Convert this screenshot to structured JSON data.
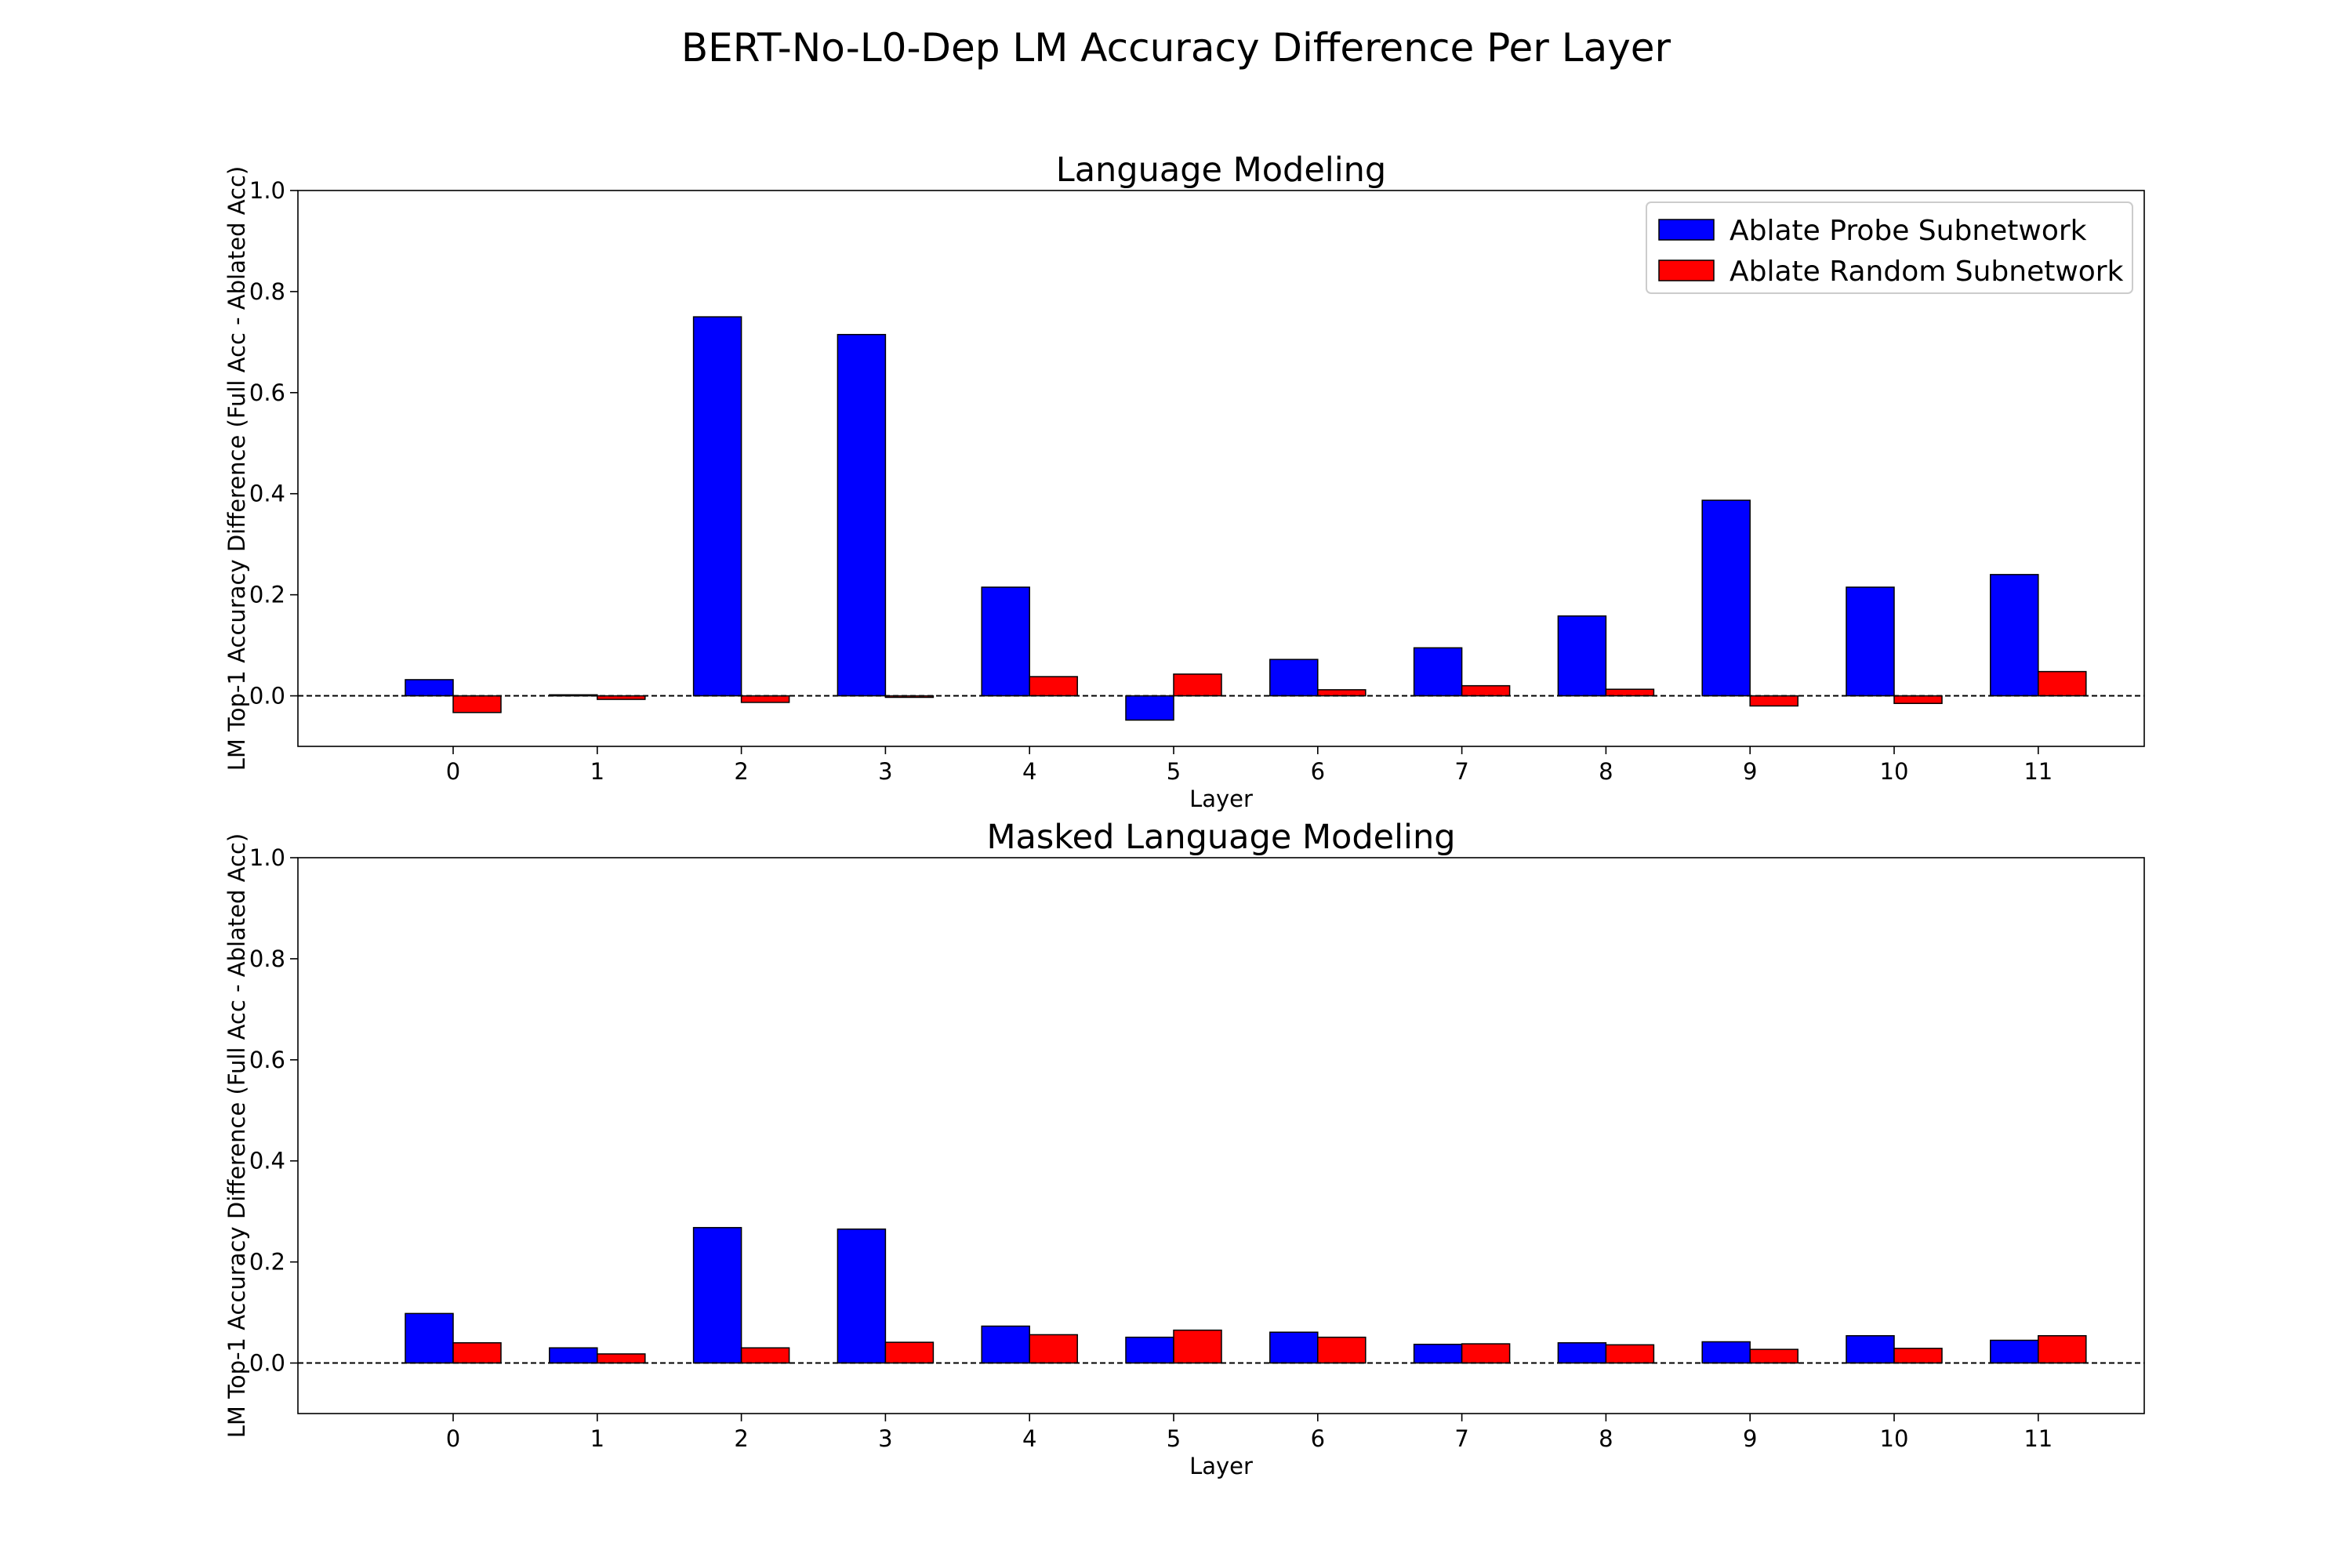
{
  "figure": {
    "title": "BERT-No-L0-Dep LM Accuracy Difference Per Layer"
  },
  "colors": {
    "probe": "#0000ff",
    "random": "#ff0000",
    "edge": "#000000"
  },
  "chart_data": [
    {
      "type": "bar",
      "title": "Language Modeling",
      "xlabel": "Layer",
      "ylabel": "LM Top-1 Accuracy Difference (Full Acc - Ablated Acc)",
      "categories": [
        "0",
        "1",
        "2",
        "3",
        "4",
        "5",
        "6",
        "7",
        "8",
        "9",
        "10",
        "11"
      ],
      "ylim": [
        -0.1,
        1.0
      ],
      "yticks": [
        "0.0",
        "0.2",
        "0.4",
        "0.6",
        "0.8",
        "1.0"
      ],
      "baseline": 0.0,
      "grid": false,
      "legend_position": "top-right",
      "series": [
        {
          "name": "Ablate Probe Subnetwork",
          "color": "#0000ff",
          "values": [
            0.032,
            0.002,
            0.75,
            0.715,
            0.215,
            -0.048,
            0.072,
            0.095,
            0.158,
            0.387,
            0.215,
            0.24
          ]
        },
        {
          "name": "Ablate Random Subnetwork",
          "color": "#ff0000",
          "values": [
            -0.033,
            -0.007,
            -0.013,
            -0.003,
            0.038,
            0.043,
            0.012,
            0.02,
            0.013,
            -0.02,
            -0.015,
            0.048
          ]
        }
      ]
    },
    {
      "type": "bar",
      "title": "Masked Language Modeling",
      "xlabel": "Layer",
      "ylabel": "LM Top-1 Accuracy Difference (Full Acc - Ablated Acc)",
      "categories": [
        "0",
        "1",
        "2",
        "3",
        "4",
        "5",
        "6",
        "7",
        "8",
        "9",
        "10",
        "11"
      ],
      "ylim": [
        -0.1,
        1.0
      ],
      "yticks": [
        "0.0",
        "0.2",
        "0.4",
        "0.6",
        "0.8",
        "1.0"
      ],
      "baseline": 0.0,
      "grid": false,
      "series": [
        {
          "name": "Ablate Probe Subnetwork",
          "color": "#0000ff",
          "values": [
            0.098,
            0.03,
            0.268,
            0.265,
            0.073,
            0.051,
            0.061,
            0.037,
            0.04,
            0.042,
            0.054,
            0.045
          ]
        },
        {
          "name": "Ablate Random Subnetwork",
          "color": "#ff0000",
          "values": [
            0.04,
            0.018,
            0.03,
            0.041,
            0.056,
            0.065,
            0.051,
            0.038,
            0.036,
            0.027,
            0.029,
            0.054
          ]
        }
      ]
    }
  ]
}
